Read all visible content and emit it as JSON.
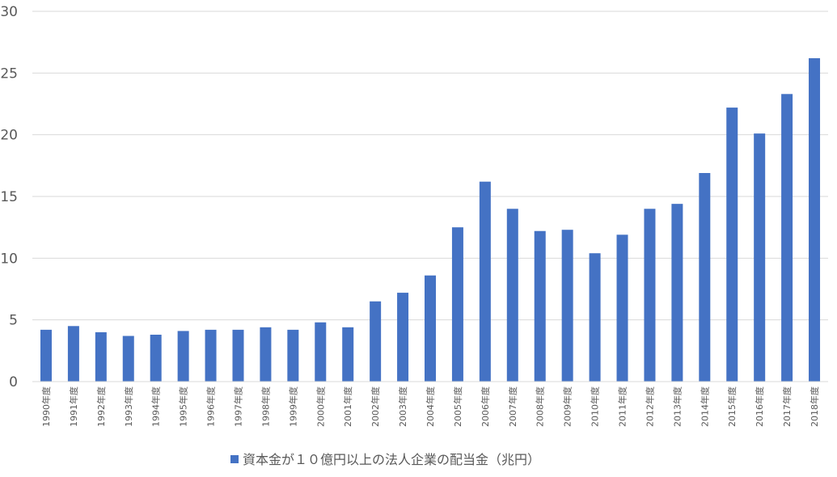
{
  "chart_data": {
    "type": "bar",
    "categories": [
      "1990年度",
      "1991年度",
      "1992年度",
      "1993年度",
      "1994年度",
      "1995年度",
      "1996年度",
      "1997年度",
      "1998年度",
      "1999年度",
      "2000年度",
      "2001年度",
      "2002年度",
      "2003年度",
      "2004年度",
      "2005年度",
      "2006年度",
      "2007年度",
      "2008年度",
      "2009年度",
      "2010年度",
      "2011年度",
      "2012年度",
      "2013年度",
      "2014年度",
      "2015年度",
      "2016年度",
      "2017年度",
      "2018年度"
    ],
    "series": [
      {
        "name": "資本金が１０億円以上の法人企業の配当金（兆円）",
        "color": "#4472C4",
        "values": [
          4.2,
          4.5,
          4.0,
          3.7,
          3.8,
          4.1,
          4.2,
          4.2,
          4.4,
          4.2,
          4.8,
          4.4,
          6.5,
          7.2,
          8.6,
          12.5,
          16.2,
          14.0,
          12.2,
          12.3,
          10.4,
          11.9,
          14.0,
          14.4,
          16.9,
          22.2,
          20.1,
          23.3,
          26.2
        ]
      }
    ],
    "ylim": [
      0,
      30
    ],
    "yticks": [
      "0",
      "5",
      "10",
      "15",
      "20",
      "25",
      "30"
    ],
    "grid": true,
    "legend_position": "bottom"
  }
}
